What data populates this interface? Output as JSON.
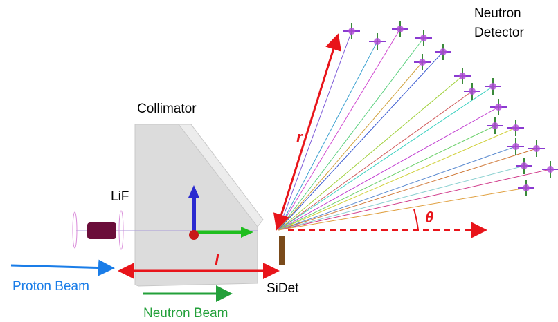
{
  "labels": {
    "neutron_detector": [
      "Neutron",
      "Detector"
    ],
    "collimator": "Collimator",
    "lif": "LiF",
    "proton_beam": "Proton Beam",
    "neutron_beam": "Neutron Beam",
    "sidet": "SiDet",
    "r": "r",
    "l": "l",
    "theta": "θ"
  }
}
